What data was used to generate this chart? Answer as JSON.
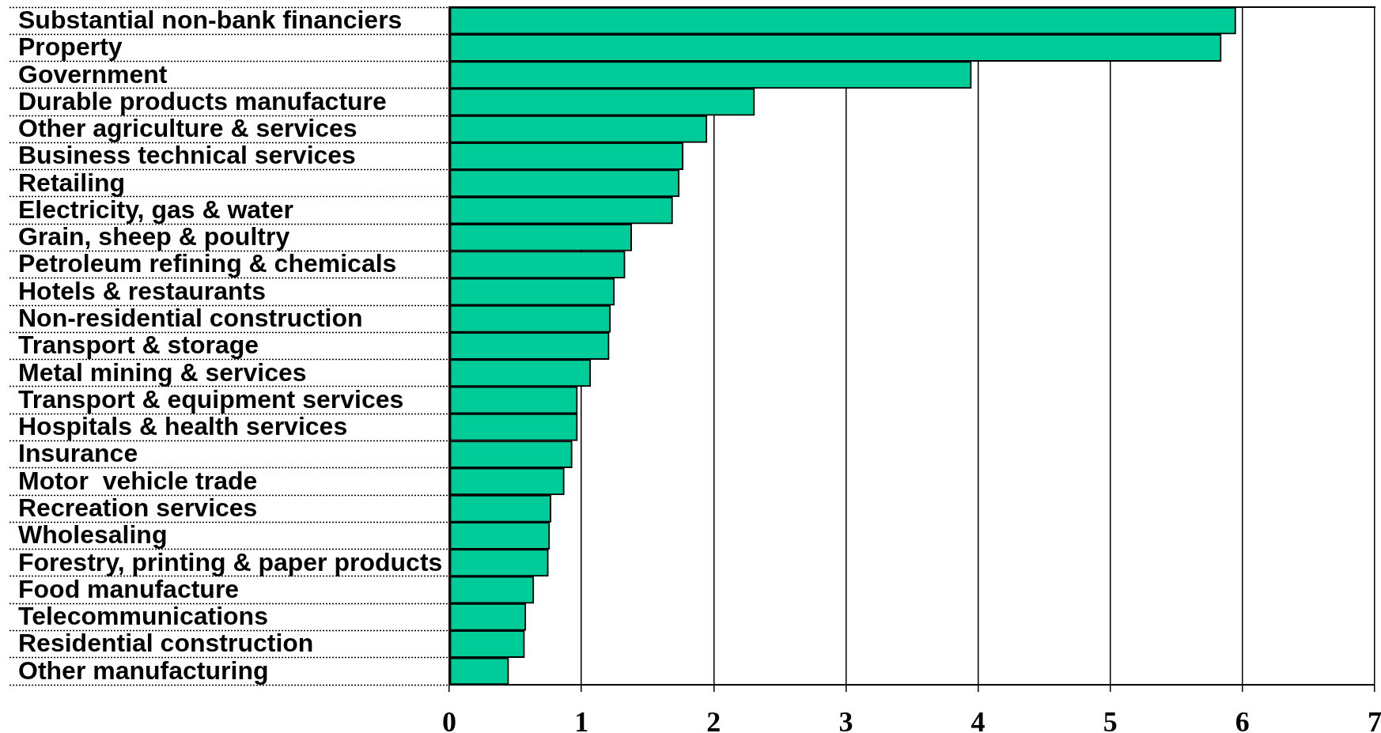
{
  "chart_data": {
    "type": "bar",
    "orientation": "horizontal",
    "categories": [
      "Substantial non-bank financiers",
      "Property",
      "Government",
      "Durable products manufacture",
      "Other agriculture & services",
      "Business technical services",
      "Retailing",
      "Electricity, gas & water",
      "Grain, sheep & poultry",
      "Petroleum refining & chemicals",
      "Hotels & restaurants",
      "Non-residential construction",
      "Transport & storage",
      "Metal mining & services",
      "Transport & equipment services",
      "Hospitals & health services",
      "Insurance",
      "Motor  vehicle trade",
      "Recreation services",
      "Wholesaling",
      "Forestry, printing & paper products",
      "Food manufacture",
      "Telecommunications",
      "Residential construction",
      "Other manufacturing"
    ],
    "values": [
      5.95,
      5.84,
      3.95,
      2.31,
      1.95,
      1.77,
      1.74,
      1.69,
      1.38,
      1.33,
      1.25,
      1.22,
      1.21,
      1.07,
      0.97,
      0.97,
      0.93,
      0.87,
      0.77,
      0.76,
      0.75,
      0.64,
      0.58,
      0.57,
      0.45
    ],
    "color": "#00cc99",
    "xlim": [
      0,
      7
    ],
    "xticks": [
      0,
      1,
      2,
      3,
      4,
      5,
      6,
      7
    ],
    "grid": "x"
  }
}
